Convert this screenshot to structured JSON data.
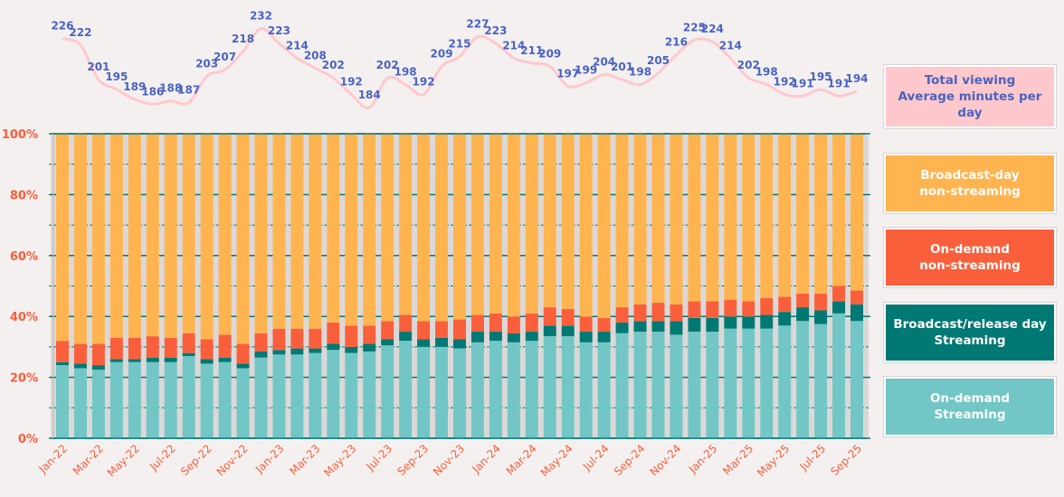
{
  "chart_data": {
    "type": "bar",
    "stacked": true,
    "percent": true,
    "title": "",
    "xlabel": "",
    "ylabel": "",
    "ylim": [
      0,
      100
    ],
    "yticks": [
      "0%",
      "20%",
      "40%",
      "60%",
      "80%",
      "100%"
    ],
    "categories": [
      "Jan-22",
      "Feb-22",
      "Mar-22",
      "Apr-22",
      "May-22",
      "Jun-22",
      "Jul-22",
      "Aug-22",
      "Sep-22",
      "Oct-22",
      "Nov-22",
      "Dec-22",
      "Jan-23",
      "Feb-23",
      "Mar-23",
      "Apr-23",
      "May-23",
      "Jun-23",
      "Jul-23",
      "Aug-23",
      "Sep-23",
      "Oct-23",
      "Nov-23",
      "Dec-23",
      "Jan-24",
      "Feb-24",
      "Mar-24",
      "Apr-24",
      "May-24",
      "Jun-24",
      "Jul-24",
      "Aug-24",
      "Sep-24",
      "Oct-24",
      "Nov-24",
      "Dec-24",
      "Jan-25",
      "Feb-25",
      "Mar-25",
      "Apr-25",
      "May-25",
      "Jun-25",
      "Jul-25",
      "Aug-25",
      "Sep-25"
    ],
    "xtick_labels": [
      "Jan-22",
      "Mar-22",
      "May-22",
      "Jul-22",
      "Sep-22",
      "Nov-22",
      "Jan-23",
      "Mar-23",
      "May-23",
      "Jul-23",
      "Sep-23",
      "Nov-23",
      "Jan-24",
      "Mar-24",
      "May-24",
      "Jul-24",
      "Sep-24",
      "Nov-24",
      "Jan-25",
      "Mar-25",
      "May-25",
      "Jul-25",
      "Sep-25"
    ],
    "series": [
      {
        "name": "On-demand Streaming",
        "color": "#72c6c6",
        "values": [
          24,
          23,
          22.5,
          25,
          25,
          25,
          25,
          27,
          24.5,
          25,
          23,
          26.5,
          27.5,
          27.5,
          28,
          29,
          28,
          28.5,
          30.5,
          32,
          30,
          30,
          29.5,
          31.5,
          32,
          31.5,
          32,
          33.5,
          33.5,
          31.5,
          31.5,
          34.5,
          35,
          35,
          34,
          35,
          35,
          36,
          36,
          36,
          37,
          38.5,
          37.5,
          41,
          38.5
        ]
      },
      {
        "name": "Broadcast/release day Streaming",
        "color": "#007873",
        "values": [
          1,
          1.5,
          1.5,
          1,
          1,
          1.5,
          1.5,
          1,
          1.5,
          1.5,
          1.5,
          2,
          1.5,
          2,
          1.5,
          2,
          2,
          2.5,
          2,
          3,
          2.5,
          3,
          3,
          3.5,
          3,
          3,
          3,
          3.5,
          3.5,
          3.5,
          3.5,
          3.5,
          3.5,
          3.5,
          4.5,
          4.5,
          4.5,
          4,
          4,
          4.5,
          4.5,
          4.5,
          4.5,
          4,
          5.5
        ]
      },
      {
        "name": "On-demand non-streaming",
        "color": "#fa5f3c",
        "values": [
          7,
          6.5,
          7,
          7,
          7,
          7,
          6.5,
          6.5,
          6.5,
          7.5,
          6.5,
          6,
          7,
          6.5,
          6.5,
          7,
          7,
          6,
          6,
          5.5,
          6,
          5.5,
          6.5,
          5.5,
          6,
          5.5,
          6,
          6,
          5.5,
          5,
          4.5,
          5,
          5.5,
          6,
          5.5,
          5.5,
          5.5,
          5.5,
          5,
          5.5,
          5,
          4.5,
          5.5,
          5,
          4.5
        ]
      },
      {
        "name": "Broadcast-day non-streaming",
        "color": "#ffb450",
        "values": [
          68,
          69,
          69,
          67,
          67,
          66.5,
          67,
          65.5,
          67.5,
          66,
          69,
          65.5,
          64,
          64,
          64,
          62,
          63,
          63,
          61.5,
          59.5,
          61.5,
          61.5,
          61,
          59.5,
          59,
          60,
          59,
          57,
          57.5,
          60,
          60.5,
          57,
          56,
          55.5,
          56,
          55,
          55,
          54.5,
          55,
          54,
          53.5,
          52.5,
          52.5,
          50,
          51.5
        ]
      }
    ],
    "total_viewing": {
      "name": "Total viewing Average minutes per day",
      "color": "#ffc8cd",
      "label_color": "#4a63c0",
      "values": [
        226,
        222,
        201,
        195,
        189,
        186,
        188,
        187,
        203,
        207,
        218,
        232,
        223,
        214,
        208,
        202,
        192,
        184,
        202,
        198,
        192,
        209,
        215,
        227,
        223,
        214,
        211,
        209,
        197,
        199,
        204,
        201,
        198,
        205,
        216,
        225,
        224,
        214,
        202,
        198,
        192,
        191,
        195,
        191,
        194
      ]
    },
    "legend_placement": "right"
  },
  "legend": [
    {
      "label": "Total viewing\nAverage minutes per day",
      "bg": "#ffc8cd",
      "fg": "#4a63c0"
    },
    {
      "label": "Broadcast-day\nnon-streaming",
      "bg": "#ffb450",
      "fg": "#ffffff"
    },
    {
      "label": "On-demand\nnon-streaming",
      "bg": "#fa5f3c",
      "fg": "#ffffff"
    },
    {
      "label": "Broadcast/release day\nStreaming",
      "bg": "#007873",
      "fg": "#ffffff"
    },
    {
      "label": "On-demand\nStreaming",
      "bg": "#72c6c6",
      "fg": "#ffffff"
    }
  ]
}
